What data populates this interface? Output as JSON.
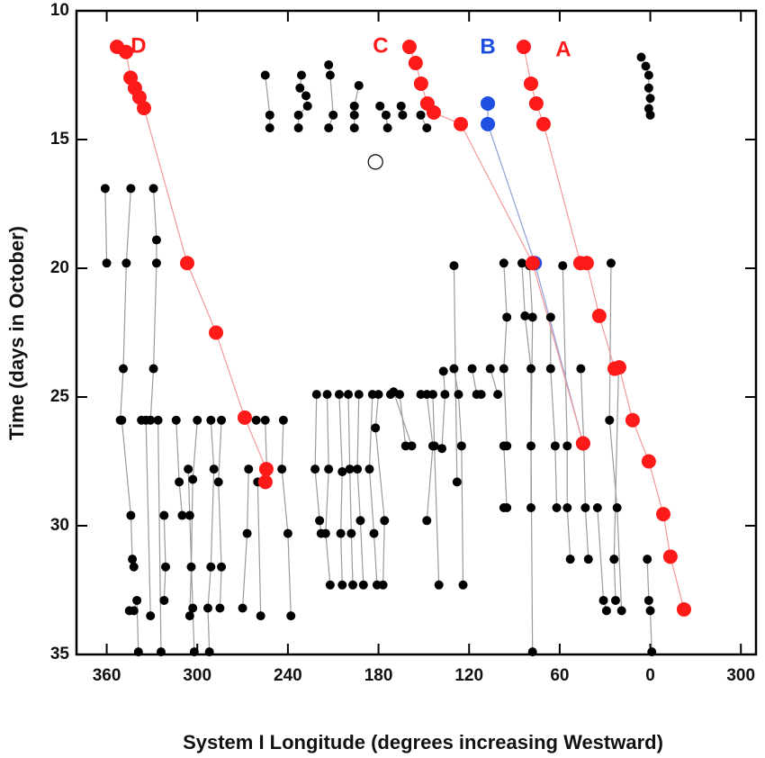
{
  "chart_data": {
    "type": "scatter",
    "xlabel": "System I Longitude (degrees increasing Westward)",
    "ylabel": "Time (days in October)",
    "xlim": [
      380,
      -70
    ],
    "ylim": [
      10,
      35
    ],
    "y_inverted": true,
    "xticks": [
      360,
      300,
      240,
      180,
      120,
      60,
      0,
      {
        "value": -60,
        "label": "300"
      }
    ],
    "yticks": [
      10,
      15,
      20,
      25,
      30,
      35
    ],
    "series": [
      {
        "name": "A",
        "color": "#ff1a1a",
        "line_color": "#f39a9a",
        "marker_size": 8,
        "x": [
          83.8,
          79,
          75.5,
          70.7,
          46.3,
          42.1,
          33.8,
          23.6,
          20.6,
          11.7,
          1,
          -8.6,
          -13.3,
          -22.3
        ],
        "y": [
          11.4,
          12.83,
          13.6,
          14.4,
          19.8,
          19.8,
          21.85,
          23.9,
          23.85,
          25.9,
          27.5,
          29.55,
          31.2,
          33.25
        ]
      },
      {
        "name": "C",
        "color": "#ff1a1a",
        "line_color": "#f39a9a",
        "marker_size": 8,
        "x": [
          159.5,
          155.4,
          151.8,
          147.6,
          143.4,
          125.5,
          77.9,
          44.5
        ],
        "y": [
          11.4,
          12.03,
          12.83,
          13.6,
          13.95,
          14.4,
          19.8,
          26.8
        ]
      },
      {
        "name": "B",
        "color": "#1f4fe0",
        "line_color": "#8f9fd8",
        "marker_size": 8,
        "x": [
          107.6,
          107.6,
          76.5,
          44.5
        ],
        "y": [
          13.6,
          14.4,
          19.8,
          26.8
        ]
      },
      {
        "name": "D",
        "color": "#ff1a1a",
        "line_color": "#f39a9a",
        "marker_size": 8,
        "x": [
          353.2,
          347.2,
          344.2,
          341.3,
          338.3,
          335.3,
          306.7,
          287.6,
          268.6,
          254.3,
          254.9
        ],
        "y": [
          11.4,
          11.6,
          12.6,
          13.0,
          13.36,
          13.78,
          19.8,
          22.5,
          25.8,
          27.8,
          28.3
        ]
      },
      {
        "color": "#000000",
        "marker_size": 5,
        "marker": "open",
        "x": [
          182
        ],
        "y": [
          15.87
        ]
      },
      {
        "color": "#000000",
        "line_color": "#9a9a9a",
        "marker_size": 5,
        "x": [
          255,
          252,
          252
        ],
        "y": [
          12.5,
          14.05,
          14.55
        ]
      },
      {
        "color": "#000000",
        "line_color": "#9a9a9a",
        "marker_size": 5,
        "x": [
          231,
          232,
          228,
          227,
          233,
          233
        ],
        "y": [
          12.5,
          13,
          13.3,
          13.7,
          14.05,
          14.55
        ]
      },
      {
        "color": "#000000",
        "line_color": "#9a9a9a",
        "marker_size": 5,
        "x": [
          213,
          212,
          210,
          213
        ],
        "y": [
          12.1,
          12.5,
          14.05,
          14.55
        ]
      },
      {
        "color": "#000000",
        "line_color": "#9a9a9a",
        "marker_size": 5,
        "x": [
          193,
          196,
          196,
          196
        ],
        "y": [
          12.9,
          13.7,
          14.05,
          14.55
        ]
      },
      {
        "color": "#000000",
        "line_color": "#9a9a9a",
        "marker_size": 5,
        "x": [
          179,
          175,
          174
        ],
        "y": [
          13.7,
          14.05,
          14.55
        ]
      },
      {
        "color": "#000000",
        "line_color": "#9a9a9a",
        "marker_size": 5,
        "x": [
          165,
          164
        ],
        "y": [
          13.7,
          14.05
        ]
      },
      {
        "color": "#000000",
        "line_color": "#9a9a9a",
        "marker_size": 5,
        "x": [
          152,
          148
        ],
        "y": [
          14.05,
          14.55
        ]
      },
      {
        "color": "#000000",
        "line_color": "#9a9a9a",
        "marker_size": 5,
        "x": [
          6,
          3,
          1,
          1,
          0,
          1,
          0
        ],
        "y": [
          11.8,
          12.15,
          12.5,
          13,
          13.4,
          13.8,
          14.05
        ]
      },
      {
        "color": "#000000",
        "line_color": "#9a9a9a",
        "marker_size": 5,
        "x": [
          361,
          360
        ],
        "y": [
          16.9,
          19.8
        ]
      },
      {
        "color": "#000000",
        "line_color": "#9a9a9a",
        "marker_size": 5,
        "x": [
          344,
          347,
          349,
          351
        ],
        "y": [
          16.9,
          19.8,
          23.9,
          25.9
        ]
      },
      {
        "color": "#000000",
        "line_color": "#9a9a9a",
        "marker_size": 5,
        "x": [
          329,
          327,
          327,
          329,
          331
        ],
        "y": [
          16.9,
          18.9,
          19.8,
          23.9,
          25.9
        ]
      },
      {
        "color": "#000000",
        "line_color": "#9a9a9a",
        "marker_size": 5,
        "x": [
          350,
          344,
          343,
          342
        ],
        "y": [
          25.9,
          29.6,
          31.3,
          31.6
        ]
      },
      {
        "color": "#000000",
        "line_color": "#9a9a9a",
        "marker_size": 5,
        "x": [
          345,
          342,
          340,
          339
        ],
        "y": [
          33.3,
          33.3,
          32.9,
          34.9
        ]
      },
      {
        "color": "#000000",
        "line_color": "#9a9a9a",
        "marker_size": 5,
        "x": [
          337,
          334,
          331
        ],
        "y": [
          25.9,
          25.9,
          33.5
        ]
      },
      {
        "color": "#000000",
        "line_color": "#9a9a9a",
        "marker_size": 5,
        "x": [
          322,
          321,
          322
        ],
        "y": [
          29.6,
          31.6,
          32.9
        ]
      },
      {
        "color": "#000000",
        "line_color": "#9a9a9a",
        "marker_size": 5,
        "x": [
          326,
          324
        ],
        "y": [
          25.9,
          34.9
        ]
      },
      {
        "color": "#000000",
        "line_color": "#9a9a9a",
        "marker_size": 5,
        "x": [
          314,
          312,
          310
        ],
        "y": [
          25.9,
          28.3,
          29.6
        ]
      },
      {
        "color": "#000000",
        "line_color": "#9a9a9a",
        "marker_size": 5,
        "x": [
          306,
          305,
          303,
          302
        ],
        "y": [
          27.8,
          29.6,
          33.2,
          34.9
        ]
      },
      {
        "color": "#000000",
        "line_color": "#9a9a9a",
        "marker_size": 5,
        "x": [
          300,
          303,
          304,
          305
        ],
        "y": [
          25.9,
          28.2,
          31.6,
          33.5
        ]
      },
      {
        "color": "#000000",
        "line_color": "#9a9a9a",
        "marker_size": 5,
        "x": [
          291,
          289,
          291,
          293,
          292
        ],
        "y": [
          25.9,
          27.8,
          31.6,
          33.2,
          34.9
        ]
      },
      {
        "color": "#000000",
        "line_color": "#9a9a9a",
        "marker_size": 5,
        "x": [
          284,
          286,
          284,
          285
        ],
        "y": [
          25.9,
          28.3,
          31.6,
          33.2
        ]
      },
      {
        "color": "#000000",
        "line_color": "#9a9a9a",
        "marker_size": 5,
        "x": [
          266,
          267,
          270
        ],
        "y": [
          27.8,
          30.3,
          33.2
        ]
      },
      {
        "color": "#000000",
        "line_color": "#9a9a9a",
        "marker_size": 5,
        "x": [
          261,
          255,
          254
        ],
        "y": [
          25.9,
          25.9,
          27.8
        ]
      },
      {
        "color": "#000000",
        "line_color": "#9a9a9a",
        "marker_size": 5,
        "x": [
          260,
          258
        ],
        "y": [
          28.3,
          33.5
        ]
      },
      {
        "color": "#000000",
        "line_color": "#9a9a9a",
        "marker_size": 5,
        "x": [
          243,
          244,
          240,
          238
        ],
        "y": [
          25.9,
          27.8,
          30.3,
          33.5
        ]
      },
      {
        "color": "#000000",
        "line_color": "#9a9a9a",
        "marker_size": 5,
        "x": [
          221,
          222,
          219,
          218
        ],
        "y": [
          24.9,
          27.8,
          29.8,
          30.3
        ]
      },
      {
        "color": "#000000",
        "line_color": "#9a9a9a",
        "marker_size": 5,
        "x": [
          214,
          213,
          215,
          212
        ],
        "y": [
          24.9,
          27.8,
          30.3,
          32.3
        ]
      },
      {
        "color": "#000000",
        "line_color": "#9a9a9a",
        "marker_size": 5,
        "x": [
          206,
          204,
          205,
          204
        ],
        "y": [
          24.9,
          27.9,
          30.3,
          32.3
        ]
      },
      {
        "color": "#000000",
        "line_color": "#9a9a9a",
        "marker_size": 5,
        "x": [
          200,
          199,
          198,
          197
        ],
        "y": [
          24.9,
          27.8,
          30.3,
          32.3
        ]
      },
      {
        "color": "#000000",
        "line_color": "#9a9a9a",
        "marker_size": 5,
        "x": [
          193,
          194,
          192,
          190
        ],
        "y": [
          24.9,
          27.8,
          29.8,
          32.3
        ]
      },
      {
        "color": "#000000",
        "line_color": "#9a9a9a",
        "marker_size": 5,
        "x": [
          184,
          186,
          183,
          181
        ],
        "y": [
          24.9,
          27.8,
          30.3,
          32.3
        ]
      },
      {
        "color": "#000000",
        "line_color": "#9a9a9a",
        "marker_size": 5,
        "x": [
          180,
          182,
          176,
          177
        ],
        "y": [
          24.9,
          26.2,
          29.8,
          32.3
        ]
      },
      {
        "color": "#000000",
        "line_color": "#9a9a9a",
        "marker_size": 5,
        "x": [
          172,
          170,
          158
        ],
        "y": [
          24.9,
          24.8,
          26.9
        ]
      },
      {
        "color": "#000000",
        "line_color": "#9a9a9a",
        "marker_size": 5,
        "x": [
          166,
          162
        ],
        "y": [
          24.9,
          26.9
        ]
      },
      {
        "color": "#000000",
        "line_color": "#9a9a9a",
        "marker_size": 5,
        "x": [
          152,
          144,
          143,
          140
        ],
        "y": [
          24.9,
          24.9,
          26.9,
          32.3
        ]
      },
      {
        "color": "#000000",
        "line_color": "#9a9a9a",
        "marker_size": 5,
        "x": [
          148,
          144,
          148
        ],
        "y": [
          24.9,
          26.9,
          29.8
        ]
      },
      {
        "color": "#000000",
        "line_color": "#9a9a9a",
        "marker_size": 5,
        "x": [
          137,
          136,
          138
        ],
        "y": [
          24.0,
          24.9,
          27.0
        ]
      },
      {
        "color": "#000000",
        "line_color": "#9a9a9a",
        "marker_size": 5,
        "x": [
          130,
          127,
          125,
          124
        ],
        "y": [
          23.9,
          24.9,
          26.9,
          32.3
        ]
      },
      {
        "color": "#000000",
        "line_color": "#9a9a9a",
        "marker_size": 5,
        "x": [
          130,
          128
        ],
        "y": [
          19.9,
          28.3
        ]
      },
      {
        "color": "#000000",
        "line_color": "#9a9a9a",
        "marker_size": 5,
        "x": [
          118,
          115,
          112
        ],
        "y": [
          23.9,
          24.9,
          24.9
        ]
      },
      {
        "color": "#000000",
        "line_color": "#9a9a9a",
        "marker_size": 5,
        "x": [
          106,
          101
        ],
        "y": [
          23.9,
          24.9
        ]
      },
      {
        "color": "#000000",
        "line_color": "#9a9a9a",
        "marker_size": 5,
        "x": [
          97,
          95,
          97,
          95
        ],
        "y": [
          19.8,
          21.9,
          23.9,
          26.9
        ]
      },
      {
        "color": "#000000",
        "line_color": "#9a9a9a",
        "marker_size": 5,
        "x": [
          97,
          95,
          97
        ],
        "y": [
          26.9,
          29.3,
          29.3
        ]
      },
      {
        "color": "#000000",
        "line_color": "#9a9a9a",
        "marker_size": 5,
        "x": [
          85,
          83,
          79,
          79
        ],
        "y": [
          19.8,
          21.85,
          23.9,
          29.3
        ]
      },
      {
        "color": "#000000",
        "line_color": "#9a9a9a",
        "marker_size": 5,
        "x": [
          80,
          78,
          79,
          78
        ],
        "y": [
          19.9,
          21.9,
          26.9,
          34.9
        ]
      },
      {
        "color": "#000000",
        "line_color": "#9a9a9a",
        "marker_size": 5,
        "x": [
          66,
          66,
          63,
          62
        ],
        "y": [
          21.9,
          23.9,
          26.9,
          29.3
        ]
      },
      {
        "color": "#000000",
        "line_color": "#9a9a9a",
        "marker_size": 5,
        "x": [
          58,
          55,
          55,
          53
        ],
        "y": [
          19.9,
          26.9,
          29.3,
          31.3
        ]
      },
      {
        "color": "#000000",
        "line_color": "#9a9a9a",
        "marker_size": 5,
        "x": [
          46,
          44,
          43,
          41
        ],
        "y": [
          23.9,
          26.9,
          29.3,
          31.3
        ]
      },
      {
        "color": "#000000",
        "line_color": "#9a9a9a",
        "marker_size": 5,
        "x": [
          26,
          27,
          22,
          19
        ],
        "y": [
          19.8,
          25.9,
          29.3,
          33.3
        ]
      },
      {
        "color": "#000000",
        "line_color": "#9a9a9a",
        "marker_size": 5,
        "x": [
          21,
          24,
          23
        ],
        "y": [
          23.9,
          31.3,
          32.9
        ]
      },
      {
        "color": "#000000",
        "line_color": "#9a9a9a",
        "marker_size": 5,
        "x": [
          35,
          31,
          29
        ],
        "y": [
          29.3,
          32.9,
          33.3
        ]
      },
      {
        "color": "#000000",
        "line_color": "#9a9a9a",
        "marker_size": 5,
        "x": [
          2,
          1,
          0,
          -1
        ],
        "y": [
          31.3,
          32.9,
          33.3,
          34.9
        ]
      }
    ]
  }
}
